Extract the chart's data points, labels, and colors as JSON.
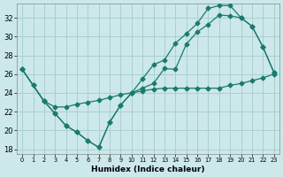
{
  "xlabel": "Humidex (Indice chaleur)",
  "background_color": "#cce8ea",
  "grid_color": "#aacfcf",
  "line_color": "#1a7a6e",
  "xlim": [
    -0.5,
    23.5
  ],
  "ylim": [
    17.5,
    33.5
  ],
  "xticks": [
    0,
    1,
    2,
    3,
    4,
    5,
    6,
    7,
    8,
    9,
    10,
    11,
    12,
    13,
    14,
    15,
    16,
    17,
    18,
    19,
    20,
    21,
    22,
    23
  ],
  "yticks": [
    18,
    20,
    22,
    24,
    26,
    28,
    30,
    32
  ],
  "line1_x": [
    0,
    1,
    2,
    3,
    4,
    5,
    6,
    7,
    8,
    9,
    10,
    11,
    12,
    13,
    14,
    15,
    16,
    17,
    18,
    19,
    20,
    21,
    22,
    23
  ],
  "line1_y": [
    26.5,
    24.8,
    23.1,
    22.5,
    22.5,
    22.8,
    23.0,
    23.2,
    23.5,
    23.8,
    24.0,
    24.2,
    24.4,
    24.5,
    24.5,
    24.5,
    24.5,
    24.5,
    24.5,
    24.8,
    25.0,
    25.3,
    25.6,
    26.0
  ],
  "line2_x": [
    0,
    1,
    2,
    3,
    4,
    5,
    6,
    7,
    8,
    9,
    10,
    11,
    12,
    13,
    14,
    15,
    16,
    17,
    18,
    19,
    20,
    21,
    22,
    23
  ],
  "line2_y": [
    26.5,
    24.8,
    23.1,
    21.8,
    20.5,
    19.8,
    18.9,
    18.2,
    20.9,
    22.7,
    24.0,
    24.5,
    25.0,
    26.6,
    26.5,
    29.2,
    30.5,
    31.3,
    32.3,
    32.2,
    32.0,
    31.1,
    28.9,
    26.2
  ],
  "line3_x": [
    0,
    2,
    3,
    4,
    5,
    6,
    7,
    8,
    9,
    10,
    11,
    12,
    13,
    14,
    15,
    16,
    17,
    18,
    19,
    20,
    21,
    22,
    23
  ],
  "line3_y": [
    26.5,
    23.1,
    21.8,
    20.5,
    19.8,
    18.9,
    18.2,
    20.9,
    22.7,
    24.0,
    25.5,
    27.0,
    27.5,
    29.3,
    30.3,
    31.4,
    33.0,
    33.3,
    33.3,
    32.0,
    31.1,
    28.9,
    26.2
  ]
}
